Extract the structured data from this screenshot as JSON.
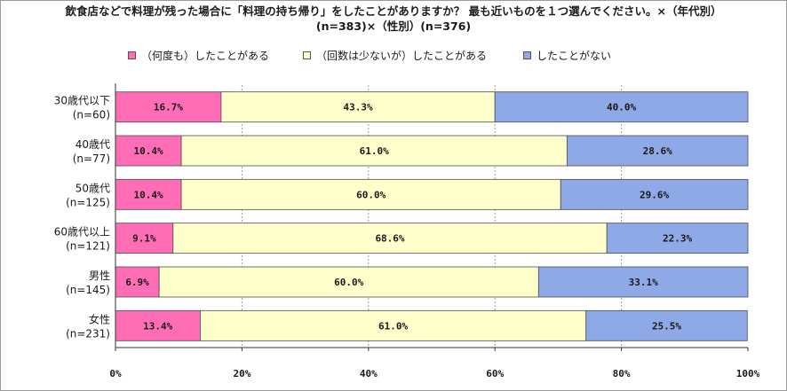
{
  "chart_data": {
    "type": "bar",
    "orientation": "horizontal",
    "stacked": true,
    "title_line1": "飲食店などで料理が残った場合に「料理の持ち帰り」をしたことがありますか？ 最も近いものを１つ選んでください。×（年代別）",
    "title_line2": "(n=383)×（性別）(n=376)",
    "categories": [
      {
        "label": "30歳代以下",
        "n": "(n=60)"
      },
      {
        "label": "40歳代",
        "n": "(n=77)"
      },
      {
        "label": "50歳代",
        "n": "(n=125)"
      },
      {
        "label": "60歳代以上",
        "n": "(n=121)"
      },
      {
        "label": "男性",
        "n": "(n=145)"
      },
      {
        "label": "女性",
        "n": "(n=231)"
      }
    ],
    "series": [
      {
        "name": "（何度も）したことがある",
        "color": "#ff6db6",
        "values": [
          16.7,
          10.4,
          10.4,
          9.1,
          6.9,
          13.4
        ]
      },
      {
        "name": "（回数は少ないが）したことがある",
        "color": "#ffffcc",
        "values": [
          43.3,
          61.0,
          60.0,
          68.6,
          60.0,
          61.0
        ]
      },
      {
        "name": "したことがない",
        "color": "#8fa8e6",
        "values": [
          40.0,
          28.6,
          29.6,
          22.3,
          33.1,
          25.5
        ]
      }
    ],
    "value_labels": [
      [
        "16.7%",
        "43.3%",
        "40.0%"
      ],
      [
        "10.4%",
        "61.0%",
        "28.6%"
      ],
      [
        "10.4%",
        "60.0%",
        "29.6%"
      ],
      [
        "9.1%",
        "68.6%",
        "22.3%"
      ],
      [
        "6.9%",
        "60.0%",
        "33.1%"
      ],
      [
        "13.4%",
        "61.0%",
        "25.5%"
      ]
    ],
    "x_ticks": [
      "0%",
      "20%",
      "40%",
      "60%",
      "80%",
      "100%"
    ],
    "xlim": [
      0,
      100
    ],
    "grid": true,
    "legend_position": "top"
  }
}
